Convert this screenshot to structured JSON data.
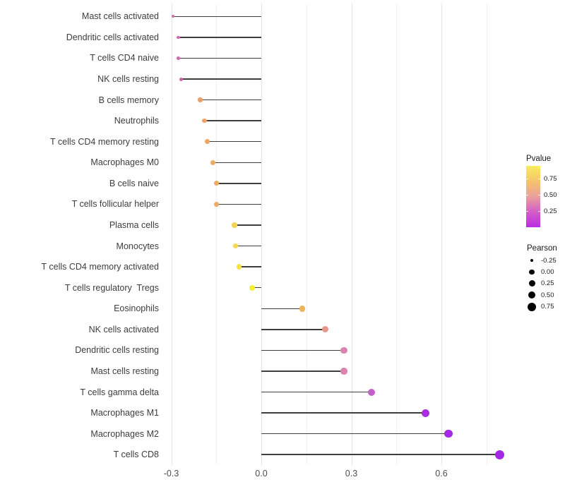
{
  "chart_data": {
    "type": "scatter",
    "subtype": "lollipop",
    "title": "",
    "xlabel": "",
    "ylabel": "",
    "xlim": [
      -0.33,
      0.82
    ],
    "x_tick_values": [
      -0.3,
      0.0,
      0.3,
      0.6
    ],
    "x_tick_labels": [
      "-0.3",
      "0.0",
      "0.3",
      "0.6"
    ],
    "minor_gridline_values": [
      -0.15,
      0.15,
      0.45,
      0.75
    ],
    "grid": "on",
    "legend_position": "right",
    "color_encodes": "Pvalue",
    "size_encodes": "Pearson",
    "points": [
      {
        "label": "Mast cells activated",
        "pearson": -0.295,
        "color": "#d06cae",
        "size": 4
      },
      {
        "label": "Dendritic cells activated",
        "pearson": -0.277,
        "color": "#d06cae",
        "size": 4.5
      },
      {
        "label": "T cells CD4 naive",
        "pearson": -0.277,
        "color": "#d06cae",
        "size": 4.5
      },
      {
        "label": "NK cells resting",
        "pearson": -0.266,
        "color": "#cc64a8",
        "size": 5
      },
      {
        "label": "B cells memory",
        "pearson": -0.203,
        "color": "#eb9d69",
        "size": 6.5
      },
      {
        "label": "Neutrophils",
        "pearson": -0.19,
        "color": "#eca266",
        "size": 6.5
      },
      {
        "label": "T cells CD4 memory resting",
        "pearson": -0.18,
        "color": "#eda763",
        "size": 7
      },
      {
        "label": "Macrophages M0",
        "pearson": -0.162,
        "color": "#eeab5e",
        "size": 7
      },
      {
        "label": "B cells naive",
        "pearson": -0.149,
        "color": "#edaa60",
        "size": 7
      },
      {
        "label": "T cells follicular helper",
        "pearson": -0.149,
        "color": "#edaa60",
        "size": 7
      },
      {
        "label": "Plasma cells",
        "pearson": -0.09,
        "color": "#f2d353",
        "size": 7.5
      },
      {
        "label": "Monocytes",
        "pearson": -0.086,
        "color": "#f4da4c",
        "size": 7.5
      },
      {
        "label": "T cells CD4 memory activated",
        "pearson": -0.074,
        "color": "#f6e343",
        "size": 7.5
      },
      {
        "label": "T cells regulatory  Tregs",
        "pearson": -0.03,
        "color": "#f9ee37",
        "size": 8
      },
      {
        "label": "Eosinophils",
        "pearson": 0.136,
        "color": "#edb45b",
        "size": 8.5
      },
      {
        "label": "NK cells activated",
        "pearson": 0.214,
        "color": "#e9968a",
        "size": 9
      },
      {
        "label": "Dendritic cells resting",
        "pearson": 0.275,
        "color": "#d983ae",
        "size": 9.5
      },
      {
        "label": "Mast cells resting",
        "pearson": 0.275,
        "color": "#d983ae",
        "size": 9.5
      },
      {
        "label": "T cells gamma delta",
        "pearson": 0.367,
        "color": "#c45ec9",
        "size": 10
      },
      {
        "label": "Macrophages M1",
        "pearson": 0.546,
        "color": "#aa2ce2",
        "size": 11
      },
      {
        "label": "Macrophages M2",
        "pearson": 0.624,
        "color": "#a529e5",
        "size": 11.5
      },
      {
        "label": "T cells CD8",
        "pearson": 0.793,
        "color": "#a129e6",
        "size": 13
      }
    ]
  },
  "legend": {
    "pvalue": {
      "title": "Pvalue",
      "tick_labels": [
        "0.75",
        "0.50",
        "0.25"
      ],
      "tick_values": [
        0.75,
        0.5,
        0.25
      ],
      "gradient_top_to_bottom": [
        "#f9ed5c",
        "#f5c46a",
        "#e9a09d",
        "#d25fc6",
        "#bb2be4"
      ]
    },
    "pearson": {
      "title": "Pearson",
      "entries": [
        {
          "label": "-0.25",
          "size": 4.5
        },
        {
          "label": "0.00",
          "size": 7.3
        },
        {
          "label": "0.25",
          "size": 9
        },
        {
          "label": "0.50",
          "size": 10.3
        },
        {
          "label": "0.75",
          "size": 12
        }
      ]
    }
  }
}
